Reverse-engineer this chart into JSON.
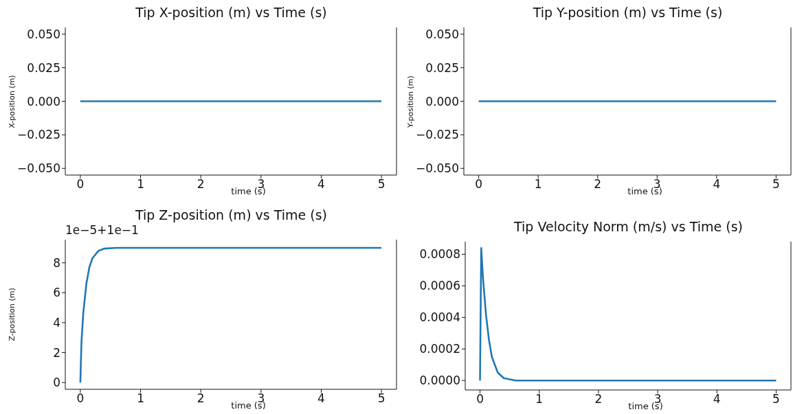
{
  "chart_data": [
    {
      "type": "line",
      "title": "Tip X-position (m) vs Time (s)",
      "xlabel": "time (s)",
      "ylabel": "X-position (m)",
      "xlim": [
        -0.25,
        5.25
      ],
      "xticks": [
        0,
        1,
        2,
        3,
        4,
        5
      ],
      "ylim": [
        -0.055,
        0.055
      ],
      "yticks": [
        {
          "value": -0.05,
          "label": "−0.050"
        },
        {
          "value": -0.025,
          "label": "−0.025"
        },
        {
          "value": 0,
          "label": "0.000"
        },
        {
          "value": 0.025,
          "label": "0.025"
        },
        {
          "value": 0.05,
          "label": "0.050"
        }
      ],
      "grid": false,
      "legend": false,
      "marker": "none",
      "line_style": "solid",
      "series": [
        {
          "color": "#1f77b4",
          "x": [
            0,
            5
          ],
          "values": [
            0,
            0
          ]
        }
      ]
    },
    {
      "type": "line",
      "title": "Tip Y-position (m) vs Time (s)",
      "xlabel": "time (s)",
      "ylabel": "Y-position (m)",
      "xlim": [
        -0.25,
        5.25
      ],
      "xticks": [
        0,
        1,
        2,
        3,
        4,
        5
      ],
      "ylim": [
        -0.055,
        0.055
      ],
      "yticks": [
        {
          "value": -0.05,
          "label": "−0.050"
        },
        {
          "value": -0.025,
          "label": "−0.025"
        },
        {
          "value": 0,
          "label": "0.000"
        },
        {
          "value": 0.025,
          "label": "0.025"
        },
        {
          "value": 0.05,
          "label": "0.050"
        }
      ],
      "grid": false,
      "legend": false,
      "marker": "none",
      "line_style": "solid",
      "series": [
        {
          "color": "#1f77b4",
          "x": [
            0,
            5
          ],
          "values": [
            0,
            0
          ]
        }
      ]
    },
    {
      "type": "line",
      "title": "Tip Z-position (m) vs Time (s)",
      "xlabel": "time (s)",
      "ylabel": "Z-position (m)",
      "annotations": [
        "1e−5+1e−1"
      ],
      "xlim": [
        -0.25,
        5.25
      ],
      "xticks": [
        0,
        1,
        2,
        3,
        4,
        5
      ],
      "ylim": [
        -0.45,
        9.55
      ],
      "yticks": [
        0,
        2,
        4,
        6,
        8
      ],
      "grid": false,
      "legend": false,
      "marker": "none",
      "line_style": "solid",
      "series": [
        {
          "color": "#1f77b4",
          "x": [
            0,
            0.01,
            0.02,
            0.05,
            0.1,
            0.15,
            0.2,
            0.3,
            0.4,
            0.6,
            1,
            5
          ],
          "values": [
            0,
            1.5,
            2.8,
            4.7,
            6.6,
            7.7,
            8.3,
            8.8,
            8.95,
            9,
            9,
            9
          ]
        }
      ]
    },
    {
      "type": "line",
      "title": "Tip Velocity Norm (m/s) vs Time (s)",
      "xlabel": "time (s)",
      "xlim": [
        -0.25,
        5.25
      ],
      "xticks": [
        0,
        1,
        2,
        3,
        4,
        5
      ],
      "ylim": [
        -6e-05,
        0.00088
      ],
      "yticks": [
        {
          "value": 0,
          "label": "0.0000"
        },
        {
          "value": 0.0002,
          "label": "0.0002"
        },
        {
          "value": 0.0004,
          "label": "0.0004"
        },
        {
          "value": 0.0006,
          "label": "0.0006"
        },
        {
          "value": 0.0008,
          "label": "0.0008"
        }
      ],
      "grid": false,
      "legend": false,
      "marker": "none",
      "line_style": "solid",
      "series": [
        {
          "color": "#1f77b4",
          "x": [
            0,
            0.02,
            0.05,
            0.1,
            0.15,
            0.2,
            0.3,
            0.4,
            0.6,
            1,
            5
          ],
          "values": [
            0,
            0.00084,
            0.00065,
            0.00042,
            0.00026,
            0.00015,
            5e-05,
            1.5e-05,
            0,
            0,
            0
          ]
        }
      ]
    }
  ]
}
